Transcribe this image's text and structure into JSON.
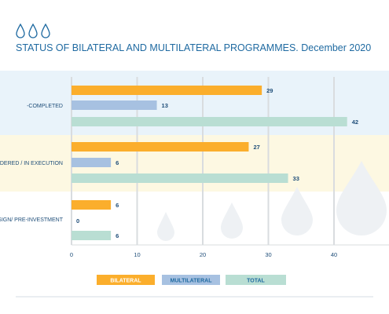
{
  "chart_data": {
    "type": "bar",
    "orientation": "horizontal",
    "title": "STATUS OF BILATERAL AND MULTILATERAL PROGRAMMES. December 2020",
    "categories": [
      "-COMPLETED",
      "NDERED / IN EXECUTION",
      "SIGN/ PRE-INVESTMENT"
    ],
    "series": [
      {
        "name": "BILATERAL",
        "values": [
          29,
          27,
          6
        ],
        "color": "#fbae2c",
        "text_color": "#ffffff"
      },
      {
        "name": "MULTILATERAL",
        "values": [
          13,
          6,
          0
        ],
        "color": "#a7c1e1",
        "text_color": "#1f6aa1"
      },
      {
        "name": "TOTAL",
        "values": [
          42,
          33,
          6
        ],
        "color": "#b9ded3",
        "text_color": "#1f6aa1"
      }
    ],
    "xlim": [
      0,
      48
    ],
    "xticks": [
      0,
      10,
      20,
      30,
      40
    ],
    "grid": true,
    "legend_position": "bottom",
    "band_colors": [
      "#e9f3fa",
      "#fdf8e2",
      "#ffffff"
    ],
    "accent_color": "#1f6aa1",
    "icon": "water-drops-icon"
  }
}
